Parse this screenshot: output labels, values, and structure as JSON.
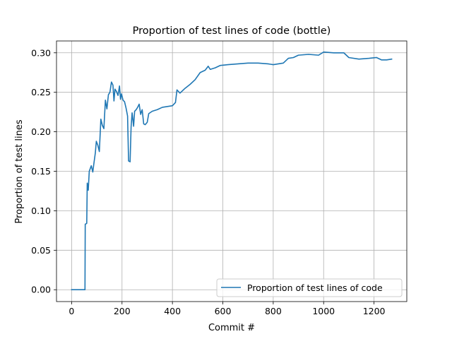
{
  "chart_data": {
    "type": "line",
    "title": "Proportion of test lines of code (bottle)",
    "xlabel": "Commit #",
    "ylabel": "Proportion of test lines",
    "xlim": [
      -60,
      1330
    ],
    "ylim": [
      -0.015,
      0.315
    ],
    "x_ticks": [
      0,
      200,
      400,
      600,
      800,
      1000,
      1200
    ],
    "y_ticks": [
      0.0,
      0.05,
      0.1,
      0.15,
      0.2,
      0.25,
      0.3
    ],
    "x_tick_labels": [
      "0",
      "200",
      "400",
      "600",
      "800",
      "1000",
      "1200"
    ],
    "y_tick_labels": [
      "0.00",
      "0.05",
      "0.10",
      "0.15",
      "0.20",
      "0.25",
      "0.30"
    ],
    "grid": true,
    "legend": {
      "position": "lower-right"
    },
    "series": [
      {
        "name": "Proportion of test lines of code",
        "color": "#1f77b4",
        "points": [
          [
            0,
            0.0
          ],
          [
            30,
            0.0
          ],
          [
            53,
            0.0
          ],
          [
            54,
            0.083
          ],
          [
            60,
            0.084
          ],
          [
            62,
            0.135
          ],
          [
            66,
            0.126
          ],
          [
            70,
            0.15
          ],
          [
            78,
            0.157
          ],
          [
            84,
            0.149
          ],
          [
            88,
            0.159
          ],
          [
            94,
            0.173
          ],
          [
            98,
            0.188
          ],
          [
            104,
            0.183
          ],
          [
            110,
            0.175
          ],
          [
            116,
            0.216
          ],
          [
            122,
            0.208
          ],
          [
            128,
            0.204
          ],
          [
            134,
            0.24
          ],
          [
            140,
            0.229
          ],
          [
            146,
            0.247
          ],
          [
            152,
            0.25
          ],
          [
            158,
            0.263
          ],
          [
            164,
            0.259
          ],
          [
            168,
            0.239
          ],
          [
            172,
            0.254
          ],
          [
            178,
            0.251
          ],
          [
            184,
            0.246
          ],
          [
            190,
            0.258
          ],
          [
            194,
            0.241
          ],
          [
            198,
            0.248
          ],
          [
            204,
            0.24
          ],
          [
            210,
            0.238
          ],
          [
            216,
            0.23
          ],
          [
            222,
            0.22
          ],
          [
            226,
            0.163
          ],
          [
            232,
            0.162
          ],
          [
            236,
            0.206
          ],
          [
            240,
            0.224
          ],
          [
            246,
            0.207
          ],
          [
            250,
            0.226
          ],
          [
            256,
            0.228
          ],
          [
            262,
            0.231
          ],
          [
            268,
            0.235
          ],
          [
            274,
            0.222
          ],
          [
            280,
            0.228
          ],
          [
            286,
            0.21
          ],
          [
            292,
            0.209
          ],
          [
            300,
            0.212
          ],
          [
            306,
            0.223
          ],
          [
            320,
            0.226
          ],
          [
            340,
            0.228
          ],
          [
            360,
            0.231
          ],
          [
            380,
            0.232
          ],
          [
            400,
            0.233
          ],
          [
            412,
            0.237
          ],
          [
            418,
            0.253
          ],
          [
            430,
            0.249
          ],
          [
            450,
            0.255
          ],
          [
            470,
            0.26
          ],
          [
            490,
            0.266
          ],
          [
            510,
            0.275
          ],
          [
            530,
            0.278
          ],
          [
            542,
            0.283
          ],
          [
            550,
            0.279
          ],
          [
            570,
            0.281
          ],
          [
            590,
            0.284
          ],
          [
            620,
            0.285
          ],
          [
            660,
            0.286
          ],
          [
            700,
            0.287
          ],
          [
            740,
            0.287
          ],
          [
            780,
            0.286
          ],
          [
            800,
            0.285
          ],
          [
            820,
            0.286
          ],
          [
            840,
            0.287
          ],
          [
            860,
            0.293
          ],
          [
            880,
            0.294
          ],
          [
            900,
            0.297
          ],
          [
            940,
            0.298
          ],
          [
            980,
            0.297
          ],
          [
            1000,
            0.301
          ],
          [
            1040,
            0.3
          ],
          [
            1080,
            0.3
          ],
          [
            1100,
            0.294
          ],
          [
            1140,
            0.292
          ],
          [
            1180,
            0.293
          ],
          [
            1210,
            0.294
          ],
          [
            1230,
            0.291
          ],
          [
            1250,
            0.291
          ],
          [
            1270,
            0.292
          ]
        ]
      }
    ]
  }
}
